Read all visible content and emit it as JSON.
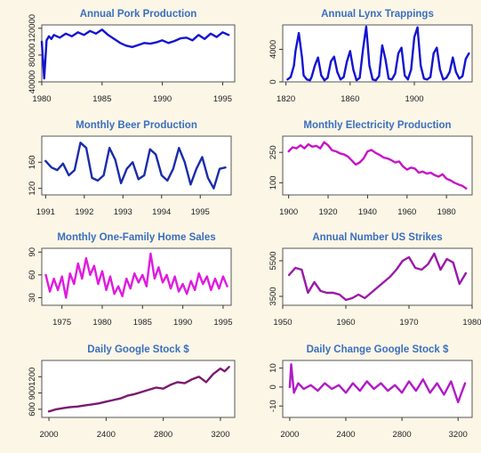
{
  "chart_data": [
    {
      "type": "line",
      "title": "Annual Pork Production",
      "color": "#1414d2",
      "xlim": [
        1980,
        1996
      ],
      "ylim": [
        40000,
        125000
      ],
      "xticks": [
        1980,
        1985,
        1990,
        1995
      ],
      "xtick_labels": [
        "1980",
        "1985",
        "1990",
        "1995"
      ],
      "yticks": [
        40000,
        80000,
        120000
      ],
      "ytick_labels": [
        "40000",
        "80000",
        "120000"
      ],
      "x": [
        1980.0,
        1980.2,
        1980.4,
        1980.6,
        1980.8,
        1981.0,
        1981.5,
        1982.0,
        1982.5,
        1983.0,
        1983.5,
        1984.0,
        1984.5,
        1985.0,
        1985.5,
        1986.0,
        1986.5,
        1987.0,
        1987.5,
        1988.0,
        1988.5,
        1989.0,
        1989.5,
        1990.0,
        1990.5,
        1991.0,
        1991.5,
        1992.0,
        1992.5,
        1993.0,
        1993.5,
        1994.0,
        1994.5,
        1995.0,
        1995.5
      ],
      "y": [
        100000,
        45000,
        102000,
        108000,
        104000,
        110000,
        106000,
        112000,
        108000,
        114000,
        110000,
        116000,
        112000,
        118000,
        110000,
        104000,
        98000,
        94000,
        92000,
        95000,
        98000,
        97000,
        99000,
        102000,
        98000,
        101000,
        105000,
        106000,
        102000,
        110000,
        104000,
        112000,
        107000,
        114000,
        110000
      ]
    },
    {
      "type": "line",
      "title": "Annual Lynx Trappings",
      "color": "#1414d2",
      "xlim": [
        1818,
        1936
      ],
      "ylim": [
        0,
        7000
      ],
      "xticks": [
        1820,
        1860,
        1900
      ],
      "xtick_labels": [
        "1820",
        "1860",
        "1900"
      ],
      "yticks": [
        0,
        4000
      ],
      "ytick_labels": [
        "0",
        "4000"
      ],
      "x": [
        1821,
        1823,
        1825,
        1826,
        1828,
        1830,
        1831,
        1833,
        1835,
        1836,
        1838,
        1840,
        1842,
        1844,
        1846,
        1848,
        1850,
        1852,
        1854,
        1856,
        1858,
        1860,
        1862,
        1864,
        1866,
        1868,
        1870,
        1872,
        1874,
        1876,
        1878,
        1880,
        1882,
        1884,
        1886,
        1888,
        1890,
        1892,
        1894,
        1896,
        1898,
        1900,
        1902,
        1904,
        1906,
        1908,
        1910,
        1912,
        1914,
        1916,
        1918,
        1920,
        1922,
        1924,
        1926,
        1928,
        1930,
        1932,
        1934
      ],
      "y": [
        300,
        600,
        2000,
        3800,
        6000,
        3000,
        800,
        300,
        200,
        600,
        2000,
        3000,
        800,
        200,
        500,
        2500,
        3100,
        1200,
        300,
        600,
        2500,
        3800,
        1500,
        200,
        500,
        4000,
        6800,
        2000,
        300,
        200,
        700,
        4500,
        2800,
        400,
        300,
        1000,
        3500,
        4200,
        800,
        300,
        1500,
        5500,
        6700,
        2000,
        400,
        300,
        600,
        3500,
        4200,
        1500,
        300,
        500,
        1200,
        3000,
        1200,
        400,
        700,
        2800,
        3500
      ]
    },
    {
      "type": "line",
      "title": "Monthly  Beer Production",
      "color": "#1a2cab",
      "xlim": [
        1990.9,
        1995.8
      ],
      "ylim": [
        110,
        200
      ],
      "xticks": [
        1991,
        1992,
        1993,
        1994,
        1995
      ],
      "xtick_labels": [
        "1991",
        "1992",
        "1993",
        "1994",
        "1995"
      ],
      "yticks": [
        120,
        160
      ],
      "ytick_labels": [
        "120",
        "160"
      ],
      "x": [
        1991.0,
        1991.15,
        1991.3,
        1991.45,
        1991.6,
        1991.75,
        1991.9,
        1992.05,
        1992.2,
        1992.35,
        1992.5,
        1992.65,
        1992.8,
        1992.95,
        1993.1,
        1993.25,
        1993.4,
        1993.55,
        1993.7,
        1993.85,
        1994.0,
        1994.15,
        1994.3,
        1994.45,
        1994.6,
        1994.75,
        1994.9,
        1995.05,
        1995.2,
        1995.35,
        1995.5,
        1995.65
      ],
      "y": [
        162,
        152,
        148,
        158,
        140,
        148,
        190,
        182,
        136,
        132,
        140,
        182,
        164,
        128,
        150,
        160,
        134,
        140,
        180,
        172,
        140,
        132,
        150,
        182,
        160,
        126,
        150,
        168,
        136,
        120,
        150,
        152
      ]
    },
    {
      "type": "line",
      "title": "Monthly Electricity Production",
      "color": "#c814c8",
      "xlim": [
        1897,
        1993
      ],
      "ylim": [
        40,
        330
      ],
      "xticks": [
        1900,
        1920,
        1940,
        1960,
        1980
      ],
      "xtick_labels": [
        "1900",
        "1920",
        "1940",
        "1960",
        "1980"
      ],
      "yticks": [
        100,
        250
      ],
      "ytick_labels": [
        "100",
        "250"
      ],
      "x": [
        1900,
        1902,
        1904,
        1906,
        1908,
        1910,
        1912,
        1914,
        1916,
        1918,
        1920,
        1922,
        1924,
        1926,
        1928,
        1930,
        1932,
        1934,
        1936,
        1938,
        1940,
        1942,
        1944,
        1946,
        1948,
        1950,
        1952,
        1954,
        1956,
        1958,
        1960,
        1962,
        1964,
        1966,
        1968,
        1970,
        1972,
        1974,
        1976,
        1978,
        1980,
        1982,
        1984,
        1986,
        1988,
        1990
      ],
      "y": [
        255,
        275,
        270,
        285,
        270,
        290,
        278,
        282,
        270,
        300,
        285,
        260,
        255,
        245,
        240,
        230,
        210,
        190,
        200,
        220,
        255,
        262,
        248,
        238,
        225,
        220,
        212,
        200,
        205,
        180,
        165,
        175,
        170,
        150,
        155,
        145,
        150,
        138,
        130,
        142,
        120,
        112,
        100,
        92,
        85,
        72
      ]
    },
    {
      "type": "line",
      "title": "Monthly One-Family Home Sales",
      "color": "#e01ae0",
      "xlim": [
        1972.5,
        1996
      ],
      "ylim": [
        20,
        95
      ],
      "xticks": [
        1975,
        1980,
        1985,
        1990,
        1995
      ],
      "xtick_labels": [
        "1975",
        "1980",
        "1985",
        "1990",
        "1995"
      ],
      "yticks": [
        30,
        60,
        90
      ],
      "ytick_labels": [
        "30",
        "60",
        "90"
      ],
      "x": [
        1973.0,
        1973.5,
        1974.0,
        1974.5,
        1975.0,
        1975.5,
        1976.0,
        1976.5,
        1977.0,
        1977.5,
        1978.0,
        1978.5,
        1979.0,
        1979.5,
        1980.0,
        1980.5,
        1981.0,
        1981.5,
        1982.0,
        1982.5,
        1983.0,
        1983.5,
        1984.0,
        1984.5,
        1985.0,
        1985.5,
        1986.0,
        1986.5,
        1987.0,
        1987.5,
        1988.0,
        1988.5,
        1989.0,
        1989.5,
        1990.0,
        1990.5,
        1991.0,
        1991.5,
        1992.0,
        1992.5,
        1993.0,
        1993.5,
        1994.0,
        1994.5,
        1995.0,
        1995.5
      ],
      "y": [
        60,
        38,
        55,
        40,
        58,
        30,
        62,
        48,
        75,
        55,
        82,
        60,
        72,
        48,
        65,
        40,
        58,
        35,
        45,
        32,
        55,
        42,
        62,
        50,
        60,
        45,
        88,
        55,
        70,
        50,
        60,
        42,
        58,
        38,
        48,
        35,
        52,
        40,
        62,
        48,
        58,
        40,
        55,
        42,
        58,
        45
      ]
    },
    {
      "type": "line",
      "title": "Annual Number US Strikes",
      "color": "#9a1aa8",
      "xlim": [
        1950,
        1980
      ],
      "ylim": [
        3000,
        6200
      ],
      "xticks": [
        1950,
        1960,
        1970,
        1980
      ],
      "xtick_labels": [
        "1950",
        "1960",
        "1970",
        "1980"
      ],
      "yticks": [
        3500,
        5500
      ],
      "ytick_labels": [
        "3500",
        "5500"
      ],
      "x": [
        1951,
        1952,
        1953,
        1954,
        1955,
        1956,
        1957,
        1958,
        1959,
        1960,
        1961,
        1962,
        1963,
        1964,
        1965,
        1966,
        1967,
        1968,
        1969,
        1970,
        1971,
        1972,
        1973,
        1974,
        1975,
        1976,
        1977,
        1978,
        1979
      ],
      "y": [
        4700,
        5100,
        5000,
        3700,
        4300,
        3800,
        3700,
        3700,
        3600,
        3300,
        3400,
        3600,
        3400,
        3700,
        4000,
        4300,
        4600,
        5000,
        5500,
        5700,
        5100,
        5000,
        5300,
        5900,
        5000,
        5600,
        5400,
        4200,
        4800
      ]
    },
    {
      "type": "line",
      "title": "Daily Google Stock $",
      "color": "#7a1a6e",
      "xlim": [
        1950,
        3300
      ],
      "ylim": [
        450,
        1500
      ],
      "xticks": [
        2000,
        2400,
        2800,
        3200
      ],
      "xtick_labels": [
        "2000",
        "2400",
        "2800",
        "3200"
      ],
      "yticks": [
        600,
        900,
        1200
      ],
      "ytick_labels": [
        "600",
        "900",
        "1200"
      ],
      "x": [
        2000,
        2050,
        2100,
        2150,
        2200,
        2250,
        2300,
        2350,
        2400,
        2450,
        2500,
        2550,
        2600,
        2650,
        2700,
        2750,
        2800,
        2850,
        2900,
        2950,
        3000,
        3050,
        3100,
        3150,
        3200,
        3230,
        3260
      ],
      "y": [
        560,
        600,
        620,
        640,
        650,
        670,
        690,
        710,
        740,
        770,
        800,
        850,
        880,
        920,
        960,
        1000,
        980,
        1050,
        1100,
        1080,
        1150,
        1200,
        1100,
        1250,
        1350,
        1300,
        1380
      ]
    },
    {
      "type": "line",
      "title": "Daily Change Google Stock $",
      "color": "#b21ac8",
      "xlim": [
        1950,
        3300
      ],
      "ylim": [
        -16,
        14
      ],
      "xticks": [
        2000,
        2400,
        2800,
        3200
      ],
      "xtick_labels": [
        "2000",
        "2400",
        "2800",
        "3200"
      ],
      "yticks": [
        -10,
        0,
        10
      ],
      "ytick_labels": [
        "-10",
        "0",
        "10"
      ],
      "x": [
        2000,
        2010,
        2030,
        2060,
        2100,
        2150,
        2200,
        2250,
        2300,
        2350,
        2400,
        2450,
        2500,
        2550,
        2600,
        2650,
        2700,
        2750,
        2800,
        2850,
        2900,
        2950,
        3000,
        3050,
        3100,
        3150,
        3200,
        3250
      ],
      "y": [
        0,
        12,
        -3,
        2,
        -1,
        1,
        -2,
        2,
        -1,
        1,
        -3,
        2,
        -2,
        3,
        -1,
        2,
        -2,
        1,
        -3,
        3,
        -2,
        4,
        -3,
        2,
        -4,
        3,
        -8,
        2
      ]
    }
  ]
}
